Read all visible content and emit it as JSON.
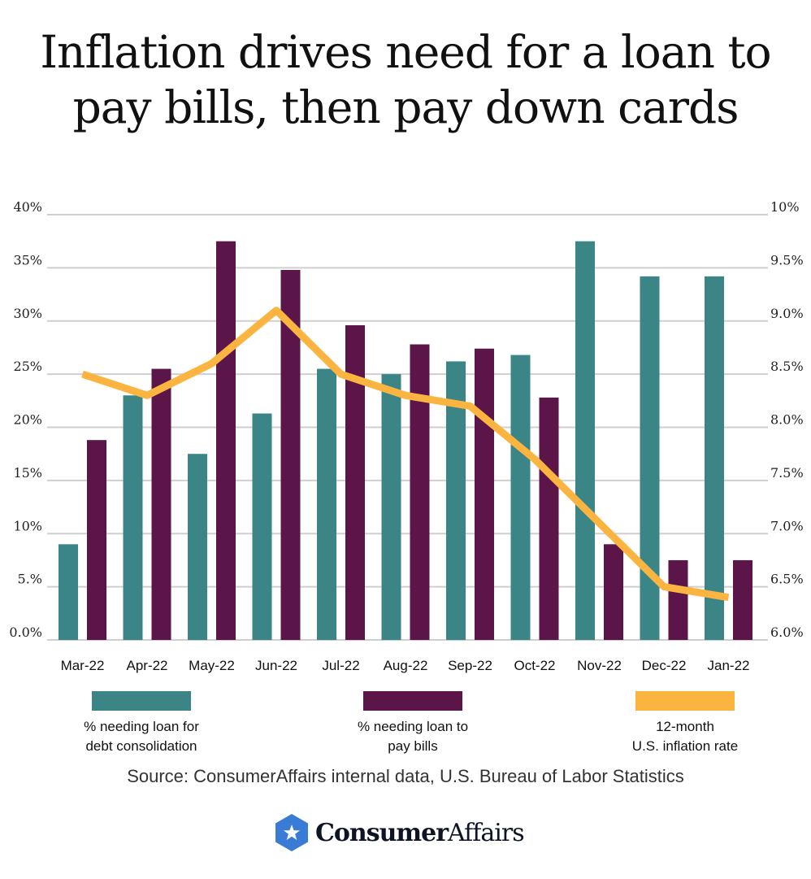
{
  "title": "Inflation drives need for a loan to pay bills, then pay down cards",
  "source": "Source: ConsumerAffairs internal data, U.S. Bureau of Labor Statistics",
  "logo": {
    "bold": "Consumer",
    "regular": "Affairs",
    "icon": "star-hexagon-icon",
    "color": "#3a7bd5"
  },
  "chart_data": {
    "type": "bar",
    "categories": [
      "Mar-22",
      "Apr-22",
      "May-22",
      "Jun-22",
      "Jul-22",
      "Aug-22",
      "Sep-22",
      "Oct-22",
      "Nov-22",
      "Dec-22",
      "Jan-22"
    ],
    "y_left": {
      "ticks": [
        "0.0%",
        "5.%",
        "10%",
        "15%",
        "20%",
        "25%",
        "30%",
        "35%",
        "40%"
      ],
      "range": [
        0,
        40
      ]
    },
    "y_right": {
      "ticks": [
        "6.0%",
        "6.5%",
        "7.0%",
        "7.5%",
        "8.0%",
        "8.5%",
        "9.0%",
        "9.5%",
        "10%"
      ],
      "range": [
        6,
        10
      ]
    },
    "grid": true,
    "legend_placement": "bottom",
    "series": [
      {
        "name": "% needing loan for debt consolidation",
        "type": "bar",
        "axis": "left",
        "color": "#3b8586",
        "values": [
          9,
          23,
          17.5,
          21.3,
          25.5,
          25,
          26.2,
          26.8,
          37.5,
          34.2,
          34.2
        ]
      },
      {
        "name": "% needing loan to pay bills",
        "type": "bar",
        "axis": "left",
        "color": "#5c1549",
        "values": [
          18.8,
          25.5,
          37.5,
          34.8,
          29.6,
          27.8,
          27.4,
          22.8,
          9,
          7.5,
          7.5
        ]
      },
      {
        "name": "12-month U.S. inflation rate",
        "type": "line",
        "axis": "right",
        "color": "#fbb440",
        "values": [
          8.5,
          8.3,
          8.6,
          9.1,
          8.5,
          8.3,
          8.2,
          7.7,
          7.1,
          6.5,
          6.4
        ]
      }
    ]
  },
  "legend": [
    {
      "line1": "% needing loan for",
      "line2": "debt consolidation"
    },
    {
      "line1": "% needing loan to",
      "line2": "pay bills"
    },
    {
      "line1": "12-month",
      "line2": "U.S. inflation rate"
    }
  ]
}
